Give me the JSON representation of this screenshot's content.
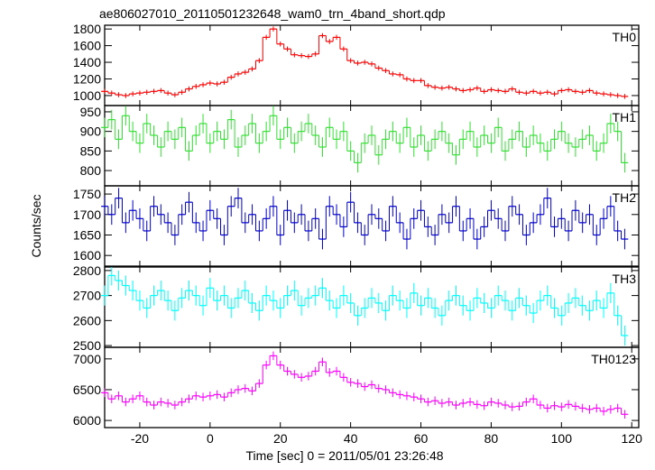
{
  "chart_data": [
    {
      "type": "step",
      "title": "ae806027010_20110501232648_wam0_trn_4band_short.qdp",
      "label": "TH0",
      "color": "#ff0000",
      "error": 30,
      "x": [
        -30,
        -28,
        -26,
        -24,
        -22,
        -20,
        -18,
        -16,
        -14,
        -12,
        -10,
        -8,
        -6,
        -4,
        -2,
        0,
        2,
        4,
        6,
        8,
        10,
        12,
        14,
        16,
        18,
        20,
        22,
        24,
        26,
        28,
        30,
        32,
        34,
        36,
        38,
        40,
        42,
        44,
        46,
        48,
        50,
        52,
        54,
        56,
        58,
        60,
        62,
        64,
        66,
        68,
        70,
        72,
        74,
        76,
        78,
        80,
        82,
        84,
        86,
        88,
        90,
        92,
        94,
        96,
        98,
        100,
        102,
        104,
        106,
        108,
        110,
        112,
        114,
        116,
        118
      ],
      "values": [
        1050,
        1030,
        1010,
        1000,
        1020,
        1030,
        1040,
        1050,
        1060,
        1030,
        1010,
        1040,
        1080,
        1110,
        1130,
        1150,
        1140,
        1160,
        1220,
        1260,
        1280,
        1320,
        1420,
        1700,
        1800,
        1620,
        1560,
        1490,
        1480,
        1470,
        1500,
        1720,
        1650,
        1700,
        1560,
        1420,
        1390,
        1400,
        1380,
        1330,
        1300,
        1260,
        1250,
        1200,
        1180,
        1180,
        1120,
        1100,
        1090,
        1100,
        1080,
        1060,
        1070,
        1090,
        1050,
        1070,
        1060,
        1050,
        1080,
        1040,
        1030,
        1050,
        1030,
        1040,
        1020,
        1060,
        1070,
        1050,
        1040,
        1060,
        1030,
        1020,
        1010,
        1000,
        990
      ],
      "xlim": [
        -30,
        122
      ],
      "ylim": [
        880,
        1845
      ],
      "yticks": [
        1000,
        1200,
        1400,
        1600,
        1800
      ]
    },
    {
      "type": "step",
      "label": "TH1",
      "color": "#33e033",
      "error": 25,
      "x": [
        -30,
        -28,
        -26,
        -24,
        -22,
        -20,
        -18,
        -16,
        -14,
        -12,
        -10,
        -8,
        -6,
        -4,
        -2,
        0,
        2,
        4,
        6,
        8,
        10,
        12,
        14,
        16,
        18,
        20,
        22,
        24,
        26,
        28,
        30,
        32,
        34,
        36,
        38,
        40,
        42,
        44,
        46,
        48,
        50,
        52,
        54,
        56,
        58,
        60,
        62,
        64,
        66,
        68,
        70,
        72,
        74,
        76,
        78,
        80,
        82,
        84,
        86,
        88,
        90,
        92,
        94,
        96,
        98,
        100,
        102,
        104,
        106,
        108,
        110,
        112,
        114,
        116,
        118
      ],
      "values": [
        910,
        930,
        880,
        940,
        900,
        870,
        920,
        890,
        860,
        900,
        880,
        910,
        850,
        890,
        920,
        870,
        900,
        880,
        930,
        860,
        890,
        920,
        870,
        900,
        940,
        880,
        910,
        870,
        900,
        920,
        890,
        860,
        910,
        880,
        900,
        850,
        820,
        870,
        890,
        840,
        880,
        900,
        870,
        910,
        860,
        890,
        850,
        880,
        900,
        870,
        840,
        880,
        900,
        860,
        890,
        870,
        910,
        850,
        880,
        900,
        860,
        890,
        870,
        850,
        880,
        900,
        870,
        860,
        880,
        890,
        850,
        870,
        920,
        900,
        820
      ],
      "xlim": [
        -30,
        122
      ],
      "ylim": [
        761,
        966
      ],
      "yticks": [
        800,
        850,
        900,
        950
      ]
    },
    {
      "type": "step",
      "label": "TH2",
      "color": "#0000cc",
      "error": 25,
      "ylabel": "Counts/sec",
      "x": [
        -30,
        -28,
        -26,
        -24,
        -22,
        -20,
        -18,
        -16,
        -14,
        -12,
        -10,
        -8,
        -6,
        -4,
        -2,
        0,
        2,
        4,
        6,
        8,
        10,
        12,
        14,
        16,
        18,
        20,
        22,
        24,
        26,
        28,
        30,
        32,
        34,
        36,
        38,
        40,
        42,
        44,
        46,
        48,
        50,
        52,
        54,
        56,
        58,
        60,
        62,
        64,
        66,
        68,
        70,
        72,
        74,
        76,
        78,
        80,
        82,
        84,
        86,
        88,
        90,
        92,
        94,
        96,
        98,
        100,
        102,
        104,
        106,
        108,
        110,
        112,
        114,
        116,
        118
      ],
      "values": [
        1720,
        1700,
        1740,
        1680,
        1710,
        1690,
        1660,
        1720,
        1700,
        1680,
        1650,
        1700,
        1730,
        1680,
        1660,
        1710,
        1690,
        1650,
        1720,
        1740,
        1680,
        1700,
        1660,
        1690,
        1720,
        1650,
        1710,
        1680,
        1700,
        1660,
        1690,
        1640,
        1720,
        1700,
        1670,
        1730,
        1680,
        1650,
        1700,
        1690,
        1660,
        1720,
        1680,
        1640,
        1690,
        1710,
        1670,
        1650,
        1700,
        1680,
        1720,
        1660,
        1690,
        1640,
        1670,
        1710,
        1690,
        1660,
        1720,
        1700,
        1650,
        1680,
        1700,
        1740,
        1670,
        1690,
        1660,
        1710,
        1680,
        1700,
        1650,
        1690,
        1720,
        1660,
        1640
      ],
      "xlim": [
        -30,
        122
      ],
      "ylim": [
        1574,
        1770
      ],
      "yticks": [
        1600,
        1650,
        1700,
        1750
      ]
    },
    {
      "type": "step",
      "label": "TH3",
      "color": "#00ffff",
      "error": 40,
      "x": [
        -30,
        -28,
        -26,
        -24,
        -22,
        -20,
        -18,
        -16,
        -14,
        -12,
        -10,
        -8,
        -6,
        -4,
        -2,
        0,
        2,
        4,
        6,
        8,
        10,
        12,
        14,
        16,
        18,
        20,
        22,
        24,
        26,
        28,
        30,
        32,
        34,
        36,
        38,
        40,
        42,
        44,
        46,
        48,
        50,
        52,
        54,
        56,
        58,
        60,
        62,
        64,
        66,
        68,
        70,
        72,
        74,
        76,
        78,
        80,
        82,
        84,
        86,
        88,
        90,
        92,
        94,
        96,
        98,
        100,
        102,
        104,
        106,
        108,
        110,
        112,
        114,
        116,
        118
      ],
      "values": [
        2700,
        2780,
        2760,
        2740,
        2720,
        2680,
        2650,
        2700,
        2720,
        2680,
        2640,
        2690,
        2720,
        2700,
        2660,
        2730,
        2680,
        2700,
        2650,
        2690,
        2720,
        2670,
        2640,
        2700,
        2680,
        2650,
        2700,
        2720,
        2660,
        2690,
        2700,
        2730,
        2680,
        2650,
        2700,
        2670,
        2620,
        2650,
        2690,
        2670,
        2640,
        2700,
        2680,
        2650,
        2710,
        2660,
        2690,
        2650,
        2620,
        2680,
        2700,
        2660,
        2640,
        2690,
        2670,
        2650,
        2700,
        2680,
        2640,
        2690,
        2660,
        2630,
        2680,
        2700,
        2650,
        2620,
        2670,
        2690,
        2660,
        2640,
        2680,
        2650,
        2710,
        2620,
        2540
      ],
      "xlim": [
        -30,
        122
      ],
      "ylim": [
        2493,
        2814
      ],
      "yticks": [
        2500,
        2600,
        2700,
        2800
      ]
    },
    {
      "type": "step",
      "label": "TH0123",
      "color": "#ff00ff",
      "error": 70,
      "xlabel": "Time [sec] 0 = 2011/05/01 23:26:48",
      "x": [
        -30,
        -28,
        -26,
        -24,
        -22,
        -20,
        -18,
        -16,
        -14,
        -12,
        -10,
        -8,
        -6,
        -4,
        -2,
        0,
        2,
        4,
        6,
        8,
        10,
        12,
        14,
        16,
        18,
        20,
        22,
        24,
        26,
        28,
        30,
        32,
        34,
        36,
        38,
        40,
        42,
        44,
        46,
        48,
        50,
        52,
        54,
        56,
        58,
        60,
        62,
        64,
        66,
        68,
        70,
        72,
        74,
        76,
        78,
        80,
        82,
        84,
        86,
        88,
        90,
        92,
        94,
        96,
        98,
        100,
        102,
        104,
        106,
        108,
        110,
        112,
        114,
        116,
        118
      ],
      "values": [
        6450,
        6350,
        6400,
        6300,
        6350,
        6400,
        6300,
        6250,
        6300,
        6280,
        6250,
        6300,
        6350,
        6400,
        6380,
        6400,
        6420,
        6380,
        6450,
        6500,
        6520,
        6480,
        6600,
        6900,
        7050,
        6900,
        6800,
        6750,
        6700,
        6720,
        6800,
        6950,
        6780,
        6800,
        6700,
        6620,
        6600,
        6550,
        6580,
        6520,
        6500,
        6450,
        6420,
        6400,
        6380,
        6350,
        6300,
        6320,
        6280,
        6300,
        6250,
        6280,
        6300,
        6260,
        6240,
        6300,
        6280,
        6250,
        6220,
        6230,
        6300,
        6350,
        6250,
        6200,
        6240,
        6220,
        6260,
        6230,
        6200,
        6180,
        6200,
        6150,
        6180,
        6200,
        6100
      ],
      "xlim": [
        -30,
        122
      ],
      "ylim": [
        5884,
        7188
      ],
      "yticks": [
        6000,
        6500,
        7000
      ],
      "xticks": [
        -20,
        0,
        20,
        40,
        60,
        80,
        100,
        120
      ]
    }
  ]
}
